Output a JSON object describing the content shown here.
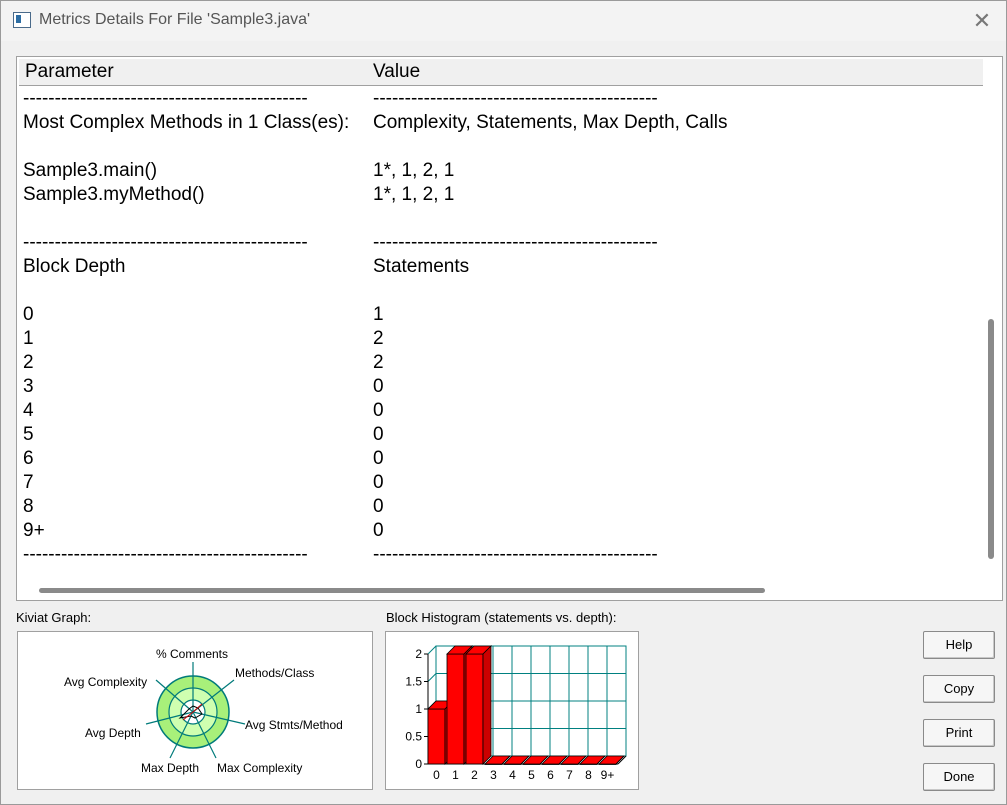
{
  "window": {
    "title": "Metrics Details For File 'Sample3.java'"
  },
  "table": {
    "headers": [
      "Parameter",
      "Value"
    ],
    "rows": [
      [
        "---------------------------------------------",
        "---------------------------------------------"
      ],
      [
        "Most Complex Methods in 1 Class(es):",
        "Complexity, Statements, Max Depth, Calls"
      ],
      [
        "",
        ""
      ],
      [
        "Sample3.main()",
        "1*, 1, 2, 1"
      ],
      [
        "Sample3.myMethod()",
        "1*, 1, 2, 1"
      ],
      [
        "",
        ""
      ],
      [
        "---------------------------------------------",
        "---------------------------------------------"
      ],
      [
        "Block Depth",
        "Statements"
      ],
      [
        "",
        ""
      ],
      [
        "0",
        "1"
      ],
      [
        "1",
        "2"
      ],
      [
        "2",
        "2"
      ],
      [
        "3",
        "0"
      ],
      [
        "4",
        "0"
      ],
      [
        "5",
        "0"
      ],
      [
        "6",
        "0"
      ],
      [
        "7",
        "0"
      ],
      [
        "8",
        "0"
      ],
      [
        "9+",
        "0"
      ],
      [
        "---------------------------------------------",
        "---------------------------------------------"
      ]
    ]
  },
  "kiviat": {
    "label": "Kiviat Graph:",
    "axes": [
      "% Comments",
      "Methods/Class",
      "Avg Stmts/Method",
      "Max Complexity",
      "Max Depth",
      "Avg Depth",
      "Avg Complexity"
    ]
  },
  "histogram": {
    "label": "Block Histogram (statements vs. depth):"
  },
  "chart_data": {
    "type": "bar",
    "title": "Block Histogram (statements vs. depth):",
    "categories": [
      "0",
      "1",
      "2",
      "3",
      "4",
      "5",
      "6",
      "7",
      "8",
      "9+"
    ],
    "values": [
      1,
      2,
      2,
      0,
      0,
      0,
      0,
      0,
      0,
      0
    ],
    "yticks": [
      "2",
      "1.5",
      "1",
      "0.5",
      "0"
    ],
    "ylim": [
      0,
      2
    ],
    "bar_color": "#ff0000",
    "grid_color": "#008080"
  },
  "buttons": {
    "help": "Help",
    "copy": "Copy",
    "print": "Print",
    "done": "Done"
  }
}
